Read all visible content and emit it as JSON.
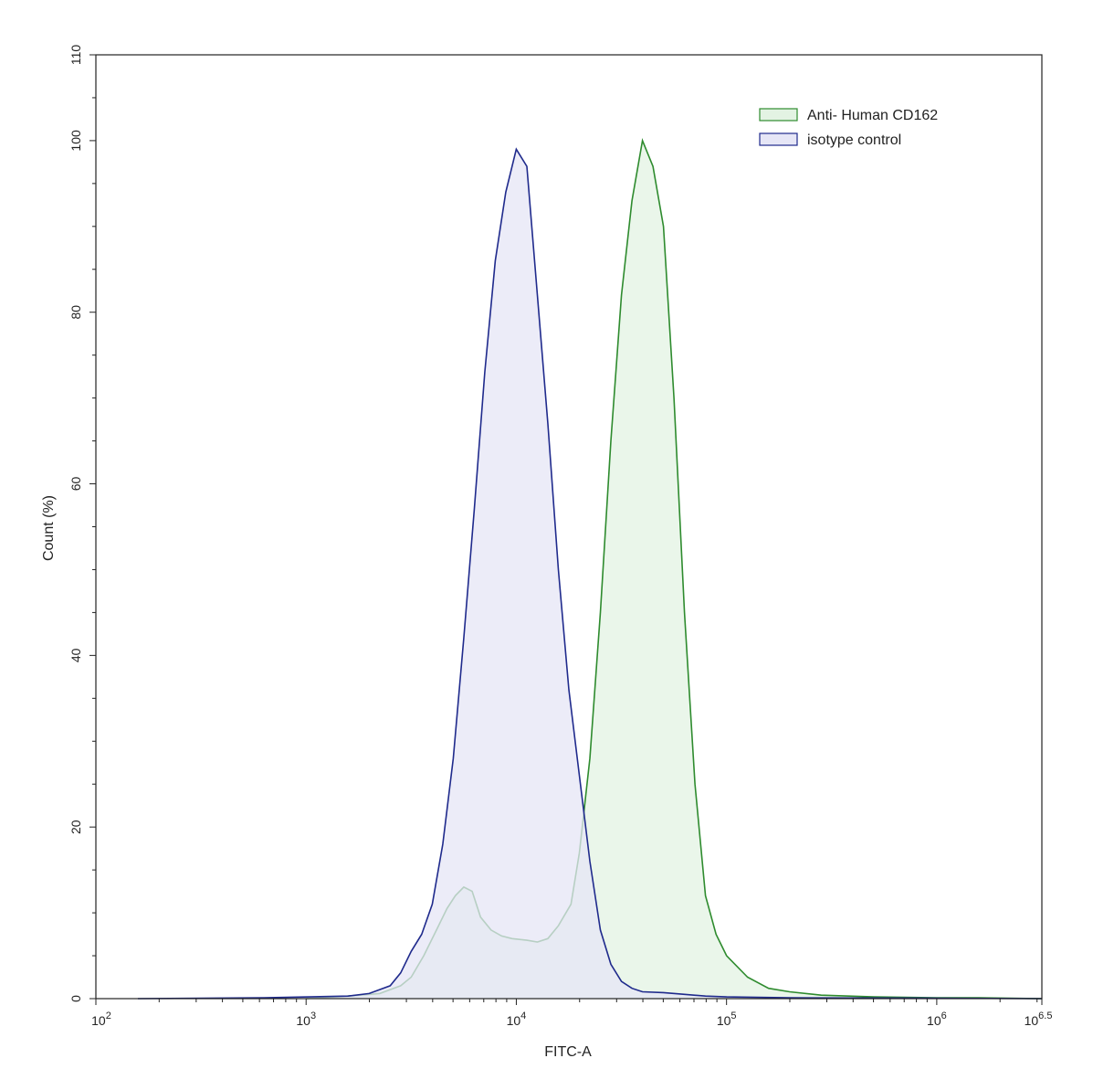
{
  "chart_data": {
    "type": "area",
    "xlabel": "FITC-A",
    "ylabel": "Count  (%)",
    "x_scale": "log10",
    "xlim_log10": [
      2,
      6.5
    ],
    "ylim": [
      0,
      110
    ],
    "x_ticks": [
      {
        "base": "10",
        "exp": "2"
      },
      {
        "base": "10",
        "exp": "3"
      },
      {
        "base": "10",
        "exp": "4"
      },
      {
        "base": "10",
        "exp": "5"
      },
      {
        "base": "10",
        "exp": "6"
      },
      {
        "base": "10",
        "exp": "6.5"
      }
    ],
    "y_ticks": [
      "0",
      "20",
      "40",
      "60",
      "80",
      "100",
      "110"
    ],
    "legend_position": "top-right",
    "grid": false,
    "series": [
      {
        "name": "Anti- Human CD162",
        "stroke": "#2e8b2e",
        "fill": "#e3f3e3",
        "points": [
          [
            3.0,
            0.0
          ],
          [
            3.2,
            0.3
          ],
          [
            3.35,
            0.6
          ],
          [
            3.45,
            1.5
          ],
          [
            3.5,
            2.5
          ],
          [
            3.56,
            5.0
          ],
          [
            3.62,
            8.0
          ],
          [
            3.67,
            10.5
          ],
          [
            3.71,
            12.0
          ],
          [
            3.75,
            13.0
          ],
          [
            3.79,
            12.5
          ],
          [
            3.83,
            9.5
          ],
          [
            3.88,
            8.0
          ],
          [
            3.93,
            7.3
          ],
          [
            3.98,
            7.0
          ],
          [
            4.05,
            6.8
          ],
          [
            4.1,
            6.6
          ],
          [
            4.15,
            7.0
          ],
          [
            4.2,
            8.5
          ],
          [
            4.26,
            11.0
          ],
          [
            4.3,
            17.0
          ],
          [
            4.35,
            28.0
          ],
          [
            4.4,
            45.0
          ],
          [
            4.45,
            65.0
          ],
          [
            4.5,
            82.0
          ],
          [
            4.55,
            93.0
          ],
          [
            4.6,
            100.0
          ],
          [
            4.65,
            97.0
          ],
          [
            4.7,
            90.0
          ],
          [
            4.75,
            70.0
          ],
          [
            4.8,
            45.0
          ],
          [
            4.85,
            25.0
          ],
          [
            4.9,
            12.0
          ],
          [
            4.95,
            7.5
          ],
          [
            5.0,
            5.0
          ],
          [
            5.1,
            2.5
          ],
          [
            5.2,
            1.2
          ],
          [
            5.3,
            0.8
          ],
          [
            5.45,
            0.4
          ],
          [
            5.7,
            0.2
          ],
          [
            6.0,
            0.1
          ],
          [
            6.2,
            0.1
          ],
          [
            6.5,
            0.0
          ]
        ]
      },
      {
        "name": "isotype control",
        "stroke": "#1f2a8c",
        "fill": "#e6e6f6",
        "points": [
          [
            2.2,
            0.0
          ],
          [
            2.8,
            0.1
          ],
          [
            3.2,
            0.3
          ],
          [
            3.3,
            0.6
          ],
          [
            3.4,
            1.5
          ],
          [
            3.45,
            3.0
          ],
          [
            3.5,
            5.5
          ],
          [
            3.55,
            7.5
          ],
          [
            3.6,
            11.0
          ],
          [
            3.65,
            18.0
          ],
          [
            3.7,
            28.0
          ],
          [
            3.75,
            42.0
          ],
          [
            3.8,
            57.0
          ],
          [
            3.85,
            73.0
          ],
          [
            3.9,
            86.0
          ],
          [
            3.95,
            94.0
          ],
          [
            4.0,
            99.0
          ],
          [
            4.05,
            97.0
          ],
          [
            4.1,
            82.0
          ],
          [
            4.15,
            67.0
          ],
          [
            4.2,
            50.0
          ],
          [
            4.25,
            36.0
          ],
          [
            4.3,
            26.0
          ],
          [
            4.35,
            16.0
          ],
          [
            4.4,
            8.0
          ],
          [
            4.45,
            4.0
          ],
          [
            4.5,
            2.0
          ],
          [
            4.55,
            1.2
          ],
          [
            4.6,
            0.8
          ],
          [
            4.7,
            0.7
          ],
          [
            4.8,
            0.5
          ],
          [
            4.9,
            0.3
          ],
          [
            5.0,
            0.2
          ],
          [
            5.3,
            0.1
          ],
          [
            6.0,
            0.05
          ],
          [
            6.5,
            0.0
          ]
        ]
      }
    ]
  }
}
